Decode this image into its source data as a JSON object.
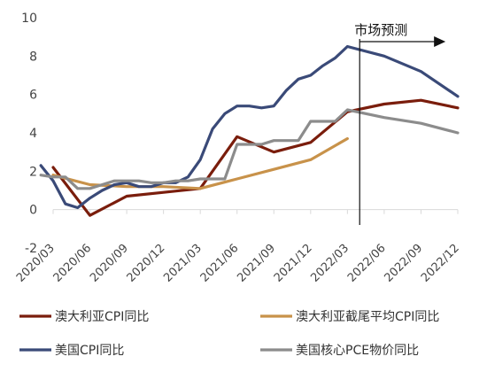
{
  "chart_data": {
    "type": "line",
    "title": "",
    "xlabel": "",
    "ylabel": "",
    "ylim": [
      -2,
      10
    ],
    "y_ticks": [
      -2,
      0,
      2,
      4,
      6,
      8,
      10
    ],
    "x_ticks": [
      "2020/03",
      "2020/06",
      "2020/09",
      "2020/12",
      "2021/03",
      "2021/06",
      "2021/09",
      "2021/12",
      "2022/03",
      "2022/06",
      "2022/09",
      "2022/12"
    ],
    "grid": false,
    "legend_position": "bottom",
    "annotation": {
      "text": "市场预测",
      "x": "2022/04",
      "arrow_to": "2022/11"
    },
    "series": [
      {
        "name": "澳大利亚CPI同比",
        "color": "#7a1d0c",
        "points": [
          [
            "2020/03",
            2.2
          ],
          [
            "2020/06",
            -0.3
          ],
          [
            "2020/09",
            0.7
          ],
          [
            "2020/12",
            0.9
          ],
          [
            "2021/03",
            1.1
          ],
          [
            "2021/06",
            3.8
          ],
          [
            "2021/09",
            3.0
          ],
          [
            "2021/12",
            3.5
          ],
          [
            "2022/03",
            5.1
          ],
          [
            "2022/06",
            5.5
          ],
          [
            "2022/09",
            5.7
          ],
          [
            "2022/12",
            5.3
          ]
        ]
      },
      {
        "name": "澳大利亚截尾平均CPI同比",
        "color": "#c8924a",
        "points": [
          [
            "2020/03",
            1.8
          ],
          [
            "2020/06",
            1.3
          ],
          [
            "2020/09",
            1.2
          ],
          [
            "2020/12",
            1.2
          ],
          [
            "2021/03",
            1.1
          ],
          [
            "2021/06",
            1.6
          ],
          [
            "2021/09",
            2.1
          ],
          [
            "2021/12",
            2.6
          ],
          [
            "2022/03",
            3.7
          ]
        ]
      },
      {
        "name": "美国CPI同比",
        "color": "#3a4a78",
        "points": [
          [
            "2020/02",
            2.3
          ],
          [
            "2020/03",
            1.5
          ],
          [
            "2020/04",
            0.3
          ],
          [
            "2020/05",
            0.1
          ],
          [
            "2020/06",
            0.6
          ],
          [
            "2020/07",
            1.0
          ],
          [
            "2020/08",
            1.3
          ],
          [
            "2020/09",
            1.4
          ],
          [
            "2020/10",
            1.2
          ],
          [
            "2020/11",
            1.2
          ],
          [
            "2020/12",
            1.4
          ],
          [
            "2021/01",
            1.4
          ],
          [
            "2021/02",
            1.7
          ],
          [
            "2021/03",
            2.6
          ],
          [
            "2021/04",
            4.2
          ],
          [
            "2021/05",
            5.0
          ],
          [
            "2021/06",
            5.4
          ],
          [
            "2021/07",
            5.4
          ],
          [
            "2021/08",
            5.3
          ],
          [
            "2021/09",
            5.4
          ],
          [
            "2021/10",
            6.2
          ],
          [
            "2021/11",
            6.8
          ],
          [
            "2021/12",
            7.0
          ],
          [
            "2022/01",
            7.5
          ],
          [
            "2022/02",
            7.9
          ],
          [
            "2022/03",
            8.5
          ],
          [
            "2022/06",
            8.0
          ],
          [
            "2022/09",
            7.2
          ],
          [
            "2022/12",
            5.9
          ]
        ]
      },
      {
        "name": "美国核心PCE物价同比",
        "color": "#8c8c8c",
        "points": [
          [
            "2020/02",
            1.8
          ],
          [
            "2020/03",
            1.7
          ],
          [
            "2020/04",
            1.7
          ],
          [
            "2020/05",
            1.1
          ],
          [
            "2020/06",
            1.1
          ],
          [
            "2020/07",
            1.3
          ],
          [
            "2020/08",
            1.5
          ],
          [
            "2020/09",
            1.5
          ],
          [
            "2020/10",
            1.5
          ],
          [
            "2020/11",
            1.4
          ],
          [
            "2020/12",
            1.4
          ],
          [
            "2021/01",
            1.5
          ],
          [
            "2021/02",
            1.5
          ],
          [
            "2021/03",
            1.6
          ],
          [
            "2021/04",
            1.6
          ],
          [
            "2021/05",
            1.6
          ],
          [
            "2021/06",
            3.4
          ],
          [
            "2021/07",
            3.4
          ],
          [
            "2021/08",
            3.4
          ],
          [
            "2021/09",
            3.6
          ],
          [
            "2021/10",
            3.6
          ],
          [
            "2021/11",
            3.6
          ],
          [
            "2021/12",
            4.6
          ],
          [
            "2022/01",
            4.6
          ],
          [
            "2022/02",
            4.6
          ],
          [
            "2022/03",
            5.2
          ],
          [
            "2022/06",
            4.8
          ],
          [
            "2022/09",
            4.5
          ],
          [
            "2022/12",
            4.0
          ]
        ]
      }
    ]
  }
}
